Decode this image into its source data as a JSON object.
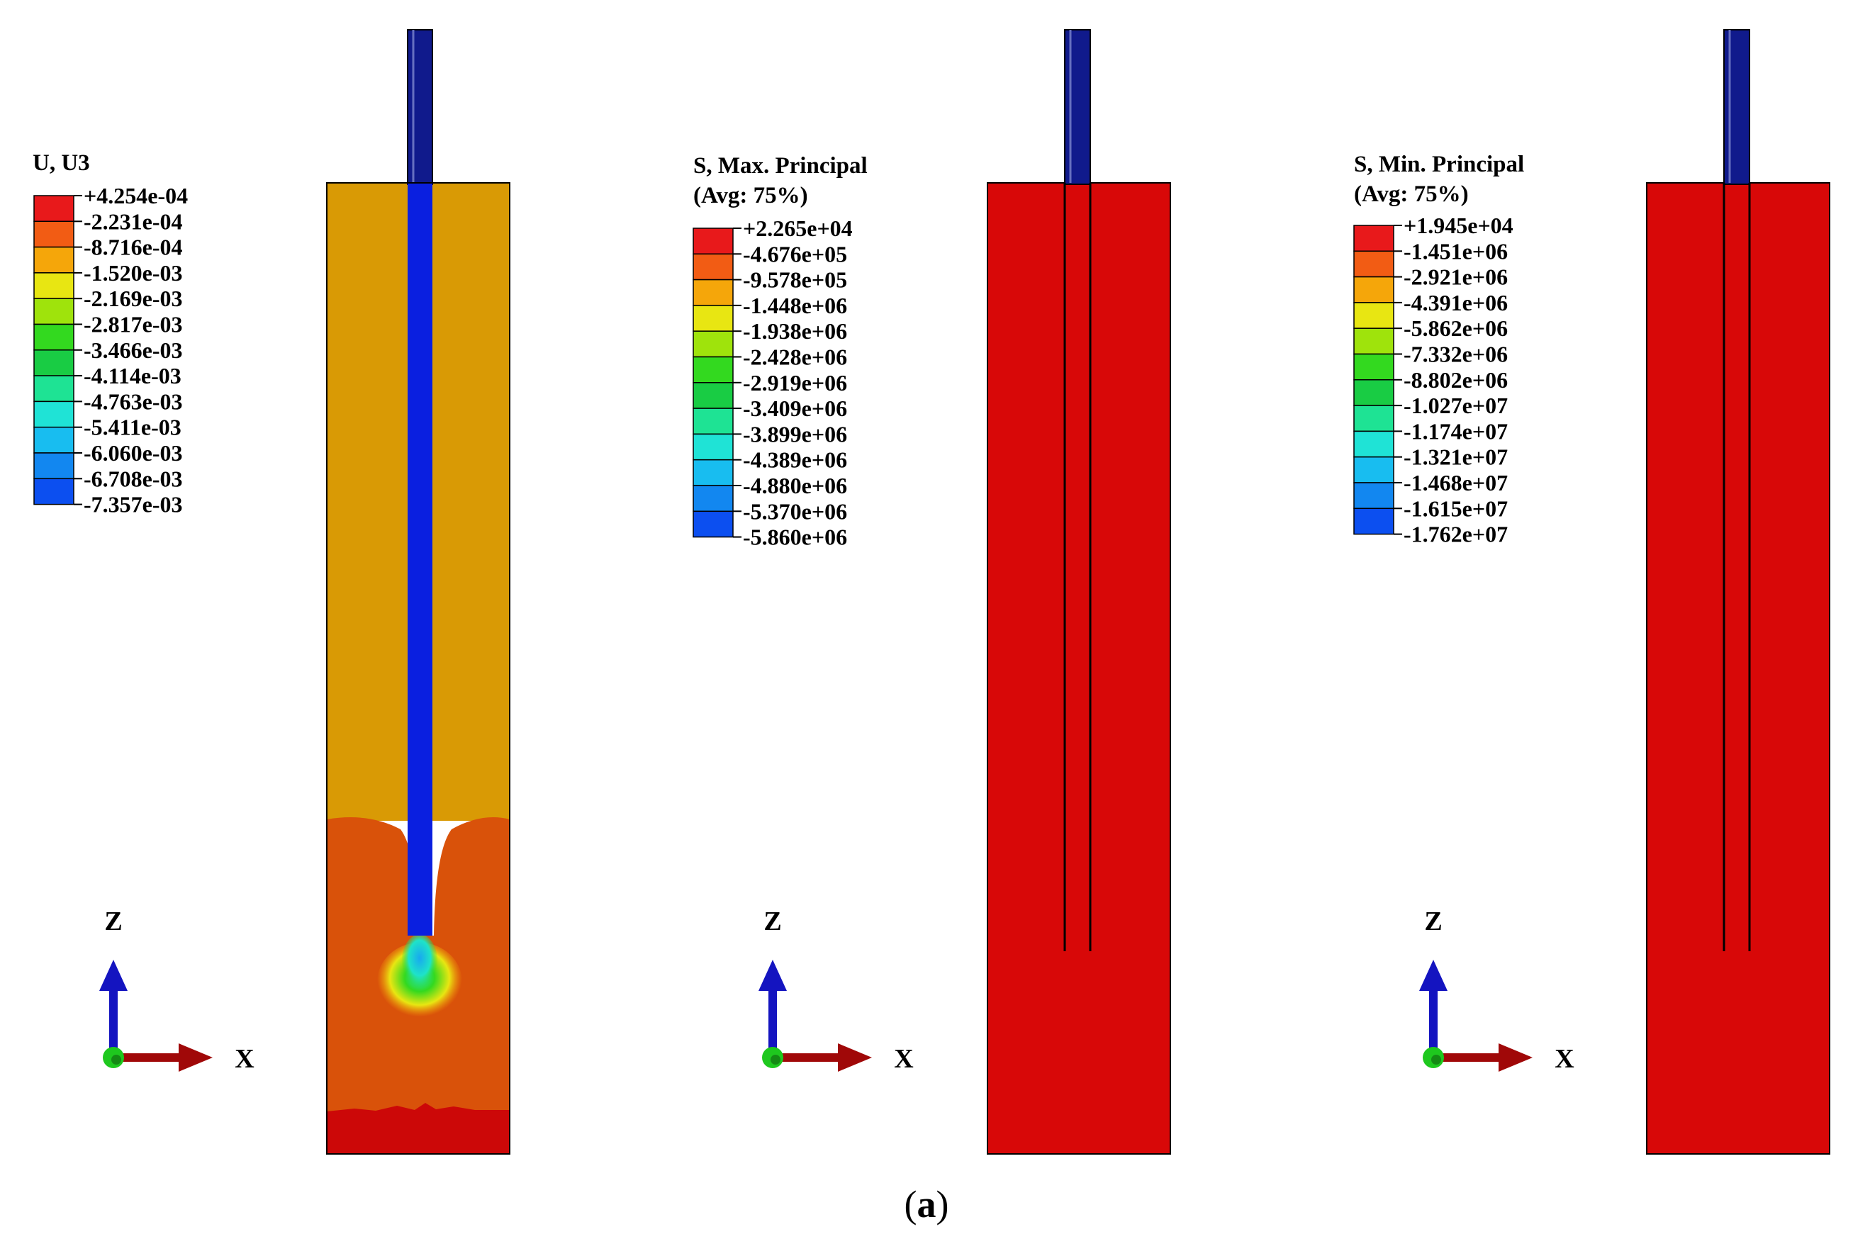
{
  "panels": [
    {
      "id": "u3",
      "legend": {
        "title_lines": [
          "U, U3"
        ],
        "values": [
          "+4.254e-04",
          "-2.231e-04",
          "-8.716e-04",
          "-1.520e-03",
          "-2.169e-03",
          "-2.817e-03",
          "-3.466e-03",
          "-4.114e-03",
          "-4.763e-03",
          "-5.411e-03",
          "-6.060e-03",
          "-6.708e-03",
          "-7.357e-03"
        ]
      },
      "axes": {
        "z": "Z",
        "x": "X"
      }
    },
    {
      "id": "max-principal",
      "legend": {
        "title_lines": [
          "S, Max. Principal",
          "(Avg: 75%)"
        ],
        "values": [
          "+2.265e+04",
          "-4.676e+05",
          "-9.578e+05",
          "-1.448e+06",
          "-1.938e+06",
          "-2.428e+06",
          "-2.919e+06",
          "-3.409e+06",
          "-3.899e+06",
          "-4.389e+06",
          "-4.880e+06",
          "-5.370e+06",
          "-5.860e+06"
        ]
      },
      "axes": {
        "z": "Z",
        "x": "X"
      }
    },
    {
      "id": "min-principal",
      "legend": {
        "title_lines": [
          "S, Min. Principal",
          "(Avg: 75%)"
        ],
        "values": [
          "+1.945e+04",
          "-1.451e+06",
          "-2.921e+06",
          "-4.391e+06",
          "-5.862e+06",
          "-7.332e+06",
          "-8.802e+06",
          "-1.027e+07",
          "-1.174e+07",
          "-1.321e+07",
          "-1.468e+07",
          "-1.615e+07",
          "-1.762e+07"
        ]
      },
      "axes": {
        "z": "Z",
        "x": "X"
      }
    }
  ],
  "colormap": [
    "#e8191b",
    "#f25c14",
    "#f5a60a",
    "#e8e612",
    "#9fe30c",
    "#33d91f",
    "#19cc44",
    "#1ee394",
    "#1fe3d6",
    "#18bdf0",
    "#1287f0",
    "#0c4ff0",
    "#0a1fe8"
  ],
  "colors": {
    "soil_upper": "#d99a05",
    "soil_lower": "#d9520a",
    "soil_bottom": "#cc0808",
    "pile": "#0a1fe0",
    "pile_top": "#101a8c",
    "block_red": "#d80808",
    "axis_z": "#1414c0",
    "axis_x": "#a00808",
    "origin": "#1ec81e"
  },
  "caption": {
    "open": "(",
    "letter": "a",
    "close": ")"
  }
}
